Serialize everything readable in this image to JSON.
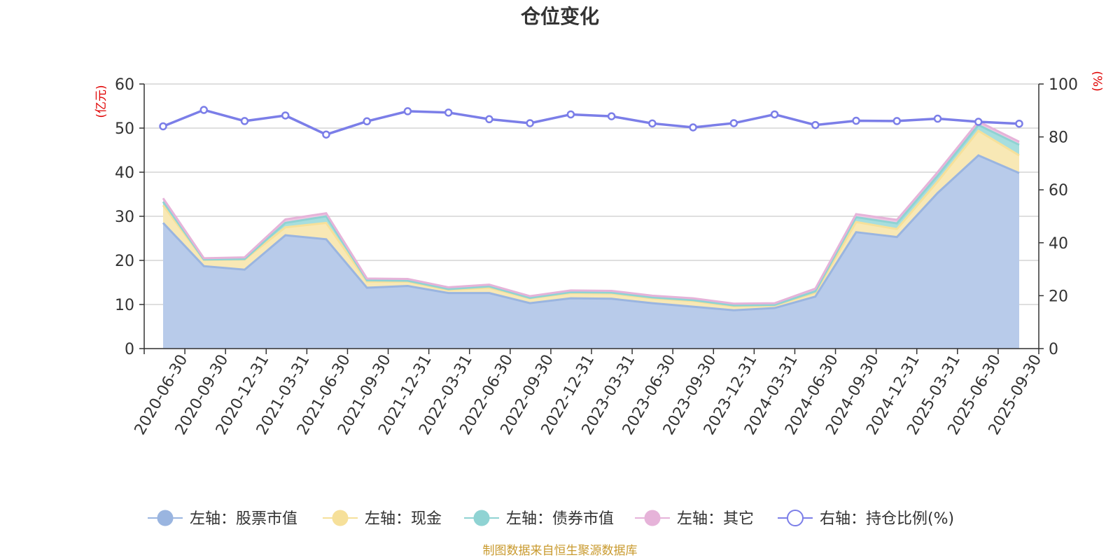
{
  "chart_data": {
    "type": "area",
    "title": "仓位变化",
    "left_axis_unit": "(亿元)",
    "right_axis_unit": "(%)",
    "categories": [
      "2020-06-30",
      "2020-09-30",
      "2020-12-31",
      "2021-03-31",
      "2021-06-30",
      "2021-09-30",
      "2021-12-31",
      "2022-03-31",
      "2022-06-30",
      "2022-09-30",
      "2022-12-31",
      "2023-03-31",
      "2023-06-30",
      "2023-09-30",
      "2023-12-31",
      "2024-03-31",
      "2024-06-30",
      "2024-09-30",
      "2024-12-31",
      "2025-03-31",
      "2025-06-30",
      "2025-09-30"
    ],
    "left_ylim": [
      0,
      60
    ],
    "left_ticks": [
      0,
      10,
      20,
      30,
      40,
      50,
      60
    ],
    "right_ylim": [
      0,
      100
    ],
    "right_ticks": [
      0,
      20,
      40,
      60,
      80,
      100
    ],
    "grid": true,
    "legend_position": "bottom",
    "series": [
      {
        "name": "左轴：股票市值",
        "axis": "left",
        "stacked": true,
        "color": "#9ab5e0",
        "fill": "#b8cbea",
        "values": [
          28.5,
          18.7,
          17.9,
          25.7,
          24.8,
          13.8,
          14.2,
          12.6,
          12.6,
          10.3,
          11.4,
          11.3,
          10.3,
          9.5,
          8.7,
          9.2,
          11.8,
          26.4,
          25.3,
          35.3,
          43.8,
          39.8
        ]
      },
      {
        "name": "左轴：现金",
        "axis": "left",
        "stacked": true,
        "color": "#f6e09a",
        "fill": "#f8e8b5",
        "values": [
          4.0,
          1.4,
          2.3,
          1.8,
          3.7,
          1.4,
          1.0,
          0.7,
          1.2,
          1.1,
          1.2,
          1.2,
          1.1,
          1.3,
          0.9,
          0.6,
          0.9,
          2.3,
          1.8,
          2.6,
          5.6,
          4.0
        ]
      },
      {
        "name": "左轴：债券市值",
        "axis": "left",
        "stacked": true,
        "color": "#8fd3d3",
        "fill": "#a7dede",
        "values": [
          0.8,
          0.1,
          0.1,
          1.0,
          1.5,
          0.3,
          0.2,
          0.2,
          0.3,
          0.1,
          0.2,
          0.2,
          0.2,
          0.2,
          0.2,
          0.1,
          0.3,
          1.1,
          1.3,
          1.3,
          1.3,
          2.4
        ]
      },
      {
        "name": "左轴：其它",
        "axis": "left",
        "stacked": true,
        "color": "#e6b3d9",
        "fill": "#eec8e3",
        "values": [
          0.8,
          0.3,
          0.4,
          0.8,
          0.7,
          0.4,
          0.4,
          0.4,
          0.4,
          0.4,
          0.4,
          0.4,
          0.4,
          0.4,
          0.4,
          0.4,
          0.6,
          0.7,
          0.8,
          0.8,
          0.8,
          0.7
        ]
      },
      {
        "name": "右轴：持仓比例(%)",
        "axis": "right",
        "type": "line",
        "color": "#7b7ee8",
        "values": [
          84.0,
          90.2,
          86.0,
          88.1,
          80.9,
          85.9,
          89.7,
          89.2,
          86.7,
          85.2,
          88.5,
          87.8,
          85.1,
          83.6,
          85.2,
          88.5,
          84.5,
          86.1,
          86.0,
          86.9,
          85.7,
          85.0
        ]
      }
    ]
  },
  "footer": {
    "source": "制图数据来自恒生聚源数据库"
  }
}
